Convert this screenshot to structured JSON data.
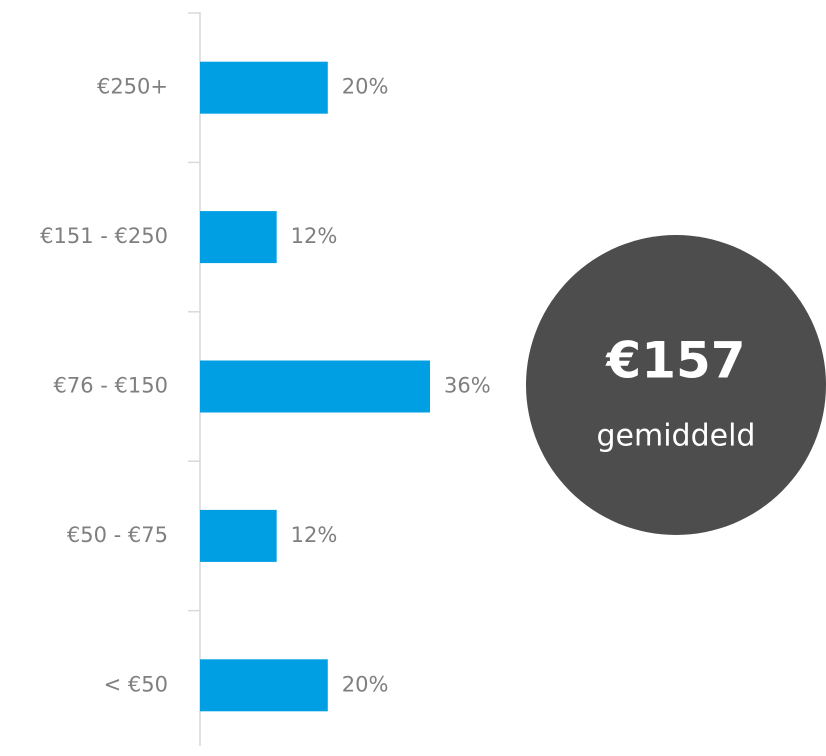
{
  "chart_data": {
    "type": "barh",
    "categories": [
      "€250+",
      "€151 - €250",
      "€76 - €150",
      "€50 - €75",
      "< €50"
    ],
    "values": [
      20,
      12,
      36,
      12,
      20
    ],
    "value_labels": [
      "20%",
      "12%",
      "36%",
      "12%",
      "20%"
    ],
    "color": "#009fe3",
    "annotations": [
      "€157",
      "gemiddeld"
    ],
    "annotation_color": "#4d4d4d"
  }
}
